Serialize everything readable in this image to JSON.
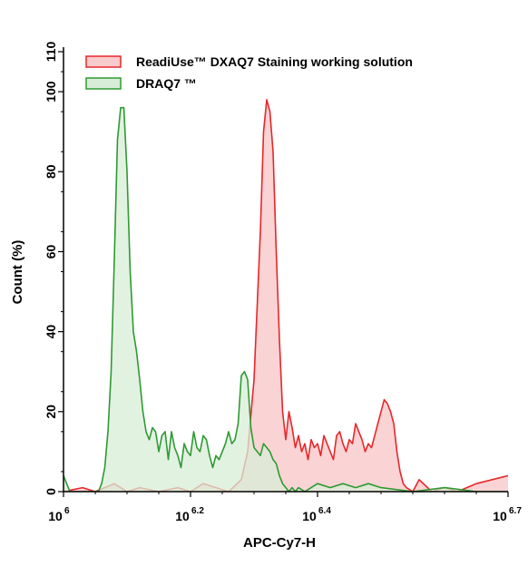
{
  "chart_data": {
    "type": "area",
    "title": "",
    "xlabel": "APC-Cy7-H",
    "ylabel": "Count (%)",
    "x_scale": "log10",
    "xlim": [
      6,
      6.7
    ],
    "ylim": [
      0,
      110
    ],
    "x_ticks": [
      {
        "base": "10",
        "exp": "6",
        "value": 6
      },
      {
        "base": "10",
        "exp": "6.2",
        "value": 6.2
      },
      {
        "base": "10",
        "exp": "6.4",
        "value": 6.4
      },
      {
        "base": "10",
        "exp": "6.7",
        "value": 6.7
      }
    ],
    "y_ticks": [
      0,
      20,
      40,
      60,
      80,
      100,
      110
    ],
    "grid": false,
    "legend_position": "top-left",
    "series": [
      {
        "name": "ReadiUse™ DXAQ7 Staining working solution",
        "stroke": "#e8262b",
        "fill": "#f9cbcc",
        "x": [
          6.0,
          6.03,
          6.05,
          6.08,
          6.1,
          6.12,
          6.15,
          6.18,
          6.2,
          6.22,
          6.24,
          6.26,
          6.28,
          6.29,
          6.3,
          6.31,
          6.315,
          6.32,
          6.325,
          6.33,
          6.335,
          6.34,
          6.345,
          6.35,
          6.355,
          6.36,
          6.365,
          6.37,
          6.375,
          6.38,
          6.385,
          6.39,
          6.395,
          6.4,
          6.405,
          6.41,
          6.415,
          6.42,
          6.425,
          6.43,
          6.435,
          6.44,
          6.445,
          6.45,
          6.455,
          6.46,
          6.465,
          6.47,
          6.475,
          6.48,
          6.485,
          6.49,
          6.495,
          6.5,
          6.505,
          6.51,
          6.515,
          6.52,
          6.525,
          6.53,
          6.535,
          6.54,
          6.55,
          6.56,
          6.58,
          6.6,
          6.62,
          6.65,
          6.7
        ],
        "y": [
          0,
          1,
          0,
          2,
          0,
          1,
          0,
          1,
          0,
          2,
          1,
          0,
          3,
          10,
          28,
          65,
          90,
          98,
          95,
          85,
          60,
          38,
          20,
          13,
          20,
          16,
          11,
          14,
          10,
          12,
          8,
          13,
          11,
          12,
          9,
          14,
          12,
          10,
          8,
          14,
          15,
          12,
          10,
          13,
          12,
          17,
          15,
          13,
          10,
          12,
          11,
          14,
          17,
          20,
          23,
          22,
          20,
          17,
          10,
          5,
          2,
          1,
          0,
          3,
          0,
          1,
          0,
          2,
          4
        ]
      },
      {
        "name": "DRAQ7 ™",
        "stroke": "#2e9a33",
        "fill": "#d8edd7",
        "x": [
          6.0,
          6.005,
          6.01,
          6.015,
          6.02,
          6.025,
          6.03,
          6.035,
          6.04,
          6.045,
          6.05,
          6.055,
          6.06,
          6.065,
          6.07,
          6.075,
          6.08,
          6.085,
          6.09,
          6.095,
          6.1,
          6.105,
          6.11,
          6.115,
          6.12,
          6.125,
          6.13,
          6.135,
          6.14,
          6.145,
          6.15,
          6.155,
          6.16,
          6.165,
          6.17,
          6.175,
          6.18,
          6.185,
          6.19,
          6.195,
          6.2,
          6.205,
          6.21,
          6.215,
          6.22,
          6.225,
          6.23,
          6.235,
          6.24,
          6.245,
          6.25,
          6.255,
          6.26,
          6.265,
          6.27,
          6.275,
          6.28,
          6.285,
          6.29,
          6.295,
          6.3,
          6.305,
          6.31,
          6.315,
          6.32,
          6.325,
          6.33,
          6.335,
          6.34,
          6.345,
          6.35,
          6.355,
          6.36,
          6.365,
          6.37,
          6.38,
          6.39,
          6.4,
          6.42,
          6.44,
          6.46,
          6.48,
          6.5,
          6.55,
          6.6,
          6.65,
          6.7
        ],
        "y": [
          4,
          2,
          0,
          0,
          0,
          0,
          0,
          0,
          0,
          0,
          0,
          0,
          2,
          6,
          15,
          30,
          58,
          88,
          96,
          96,
          80,
          55,
          40,
          35,
          28,
          20,
          15,
          13,
          16,
          15,
          10,
          14,
          15,
          8,
          15,
          11,
          9,
          6,
          12,
          10,
          9,
          15,
          11,
          10,
          14,
          13,
          9,
          6,
          9,
          8,
          10,
          12,
          15,
          12,
          13,
          17,
          29,
          30,
          28,
          16,
          11,
          10,
          9,
          12,
          11,
          10,
          8,
          7,
          4,
          2,
          1,
          0,
          1,
          0,
          1,
          0,
          1,
          2,
          1,
          2,
          1,
          2,
          1,
          0,
          1,
          0,
          0
        ]
      }
    ]
  }
}
